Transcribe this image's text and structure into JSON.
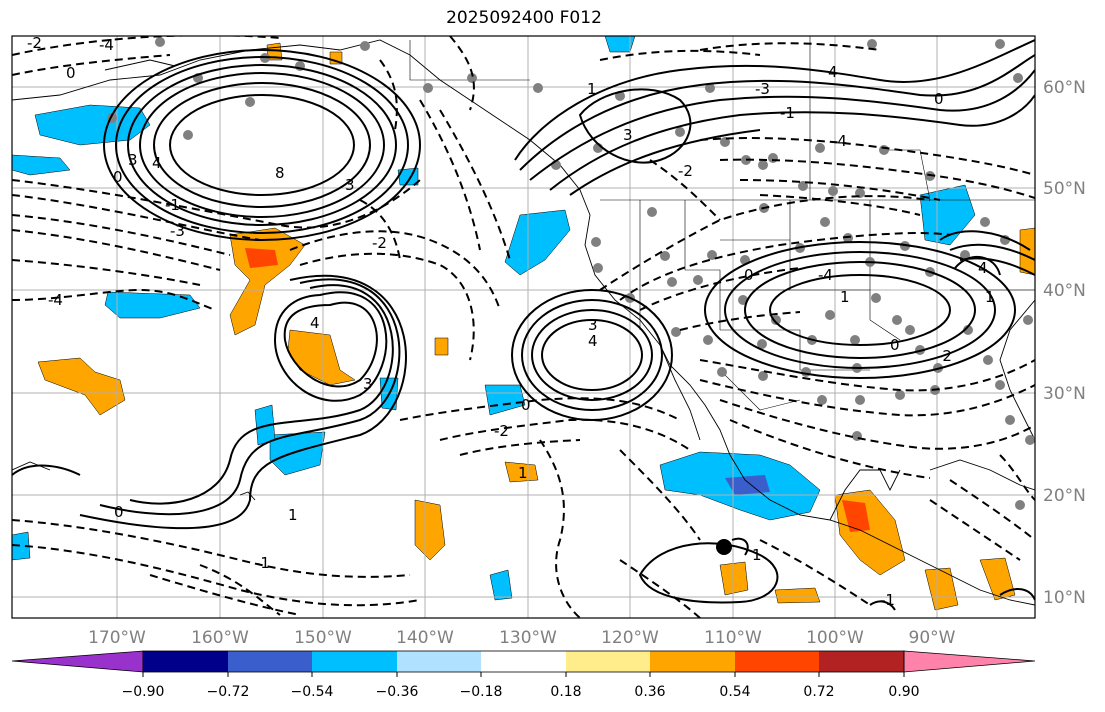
{
  "title": "2025092400 F012",
  "map": {
    "lat_labels": [
      "60°N",
      "50°N",
      "40°N",
      "30°N",
      "20°N",
      "10°N"
    ],
    "lon_labels": [
      "170°W",
      "160°W",
      "150°W",
      "140°W",
      "130°W",
      "120°W",
      "110°W",
      "100°W",
      "90°W"
    ],
    "contour_labels": [
      "0",
      "-2",
      "-4",
      "8",
      "4",
      "3",
      "-1",
      "-3",
      "0",
      "3",
      "4",
      "-2",
      "-4",
      "4",
      "3",
      "0",
      "-2",
      "3",
      "1",
      "-1",
      "0",
      "1",
      "4",
      "-3",
      "-4",
      "3",
      "-1",
      "0",
      "1",
      "-2",
      "4",
      "-4",
      "-2",
      "1",
      "0",
      "1",
      "0",
      "-1",
      "1"
    ]
  },
  "colorbar": {
    "tick_labels": [
      "−0.90",
      "−0.72",
      "−0.54",
      "−0.36",
      "−0.18",
      "0.18",
      "0.36",
      "0.54",
      "0.72",
      "0.90"
    ],
    "colors": [
      "#9932CC",
      "#00008B",
      "#3A5FCD",
      "#00BFFF",
      "#B0E2FF",
      "#FFFFFF",
      "#FFEC8B",
      "#FFA500",
      "#FF4500",
      "#B22222",
      "#FF82AB"
    ]
  }
}
